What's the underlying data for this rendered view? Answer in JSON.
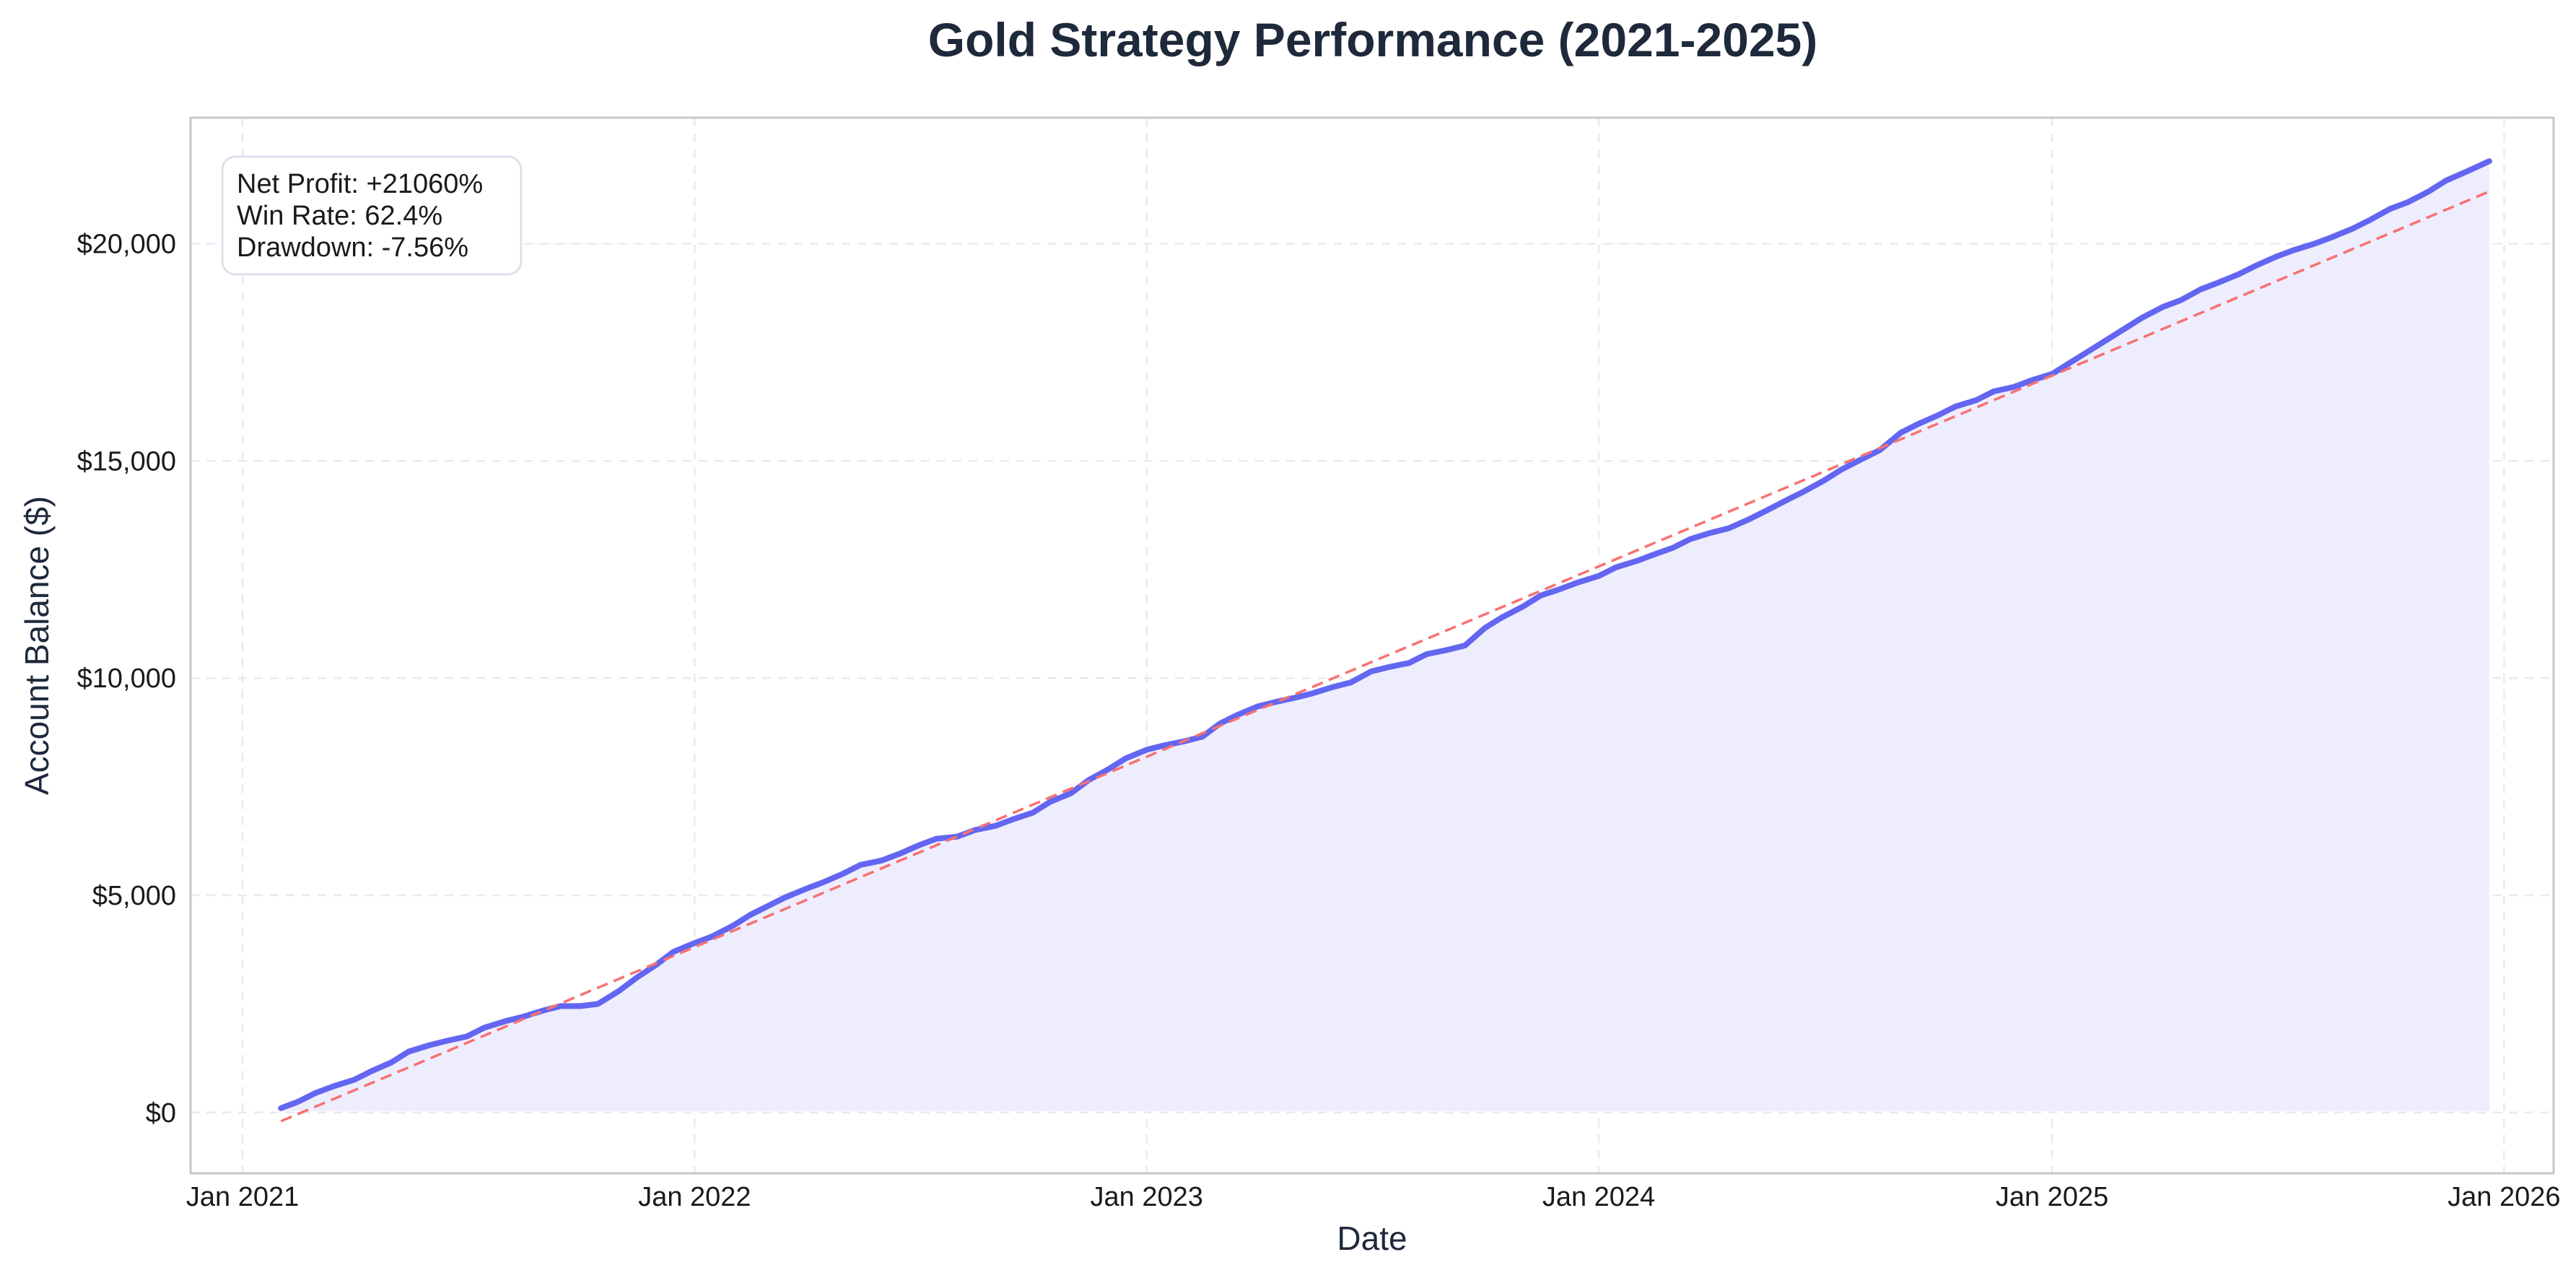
{
  "chart_data": {
    "type": "area",
    "title": "Gold Strategy Performance (2021-2025)",
    "xlabel": "Date",
    "ylabel": "Account Balance ($)",
    "x_ticks": [
      {
        "date": "2021-01-01",
        "label": "Jan 2021"
      },
      {
        "date": "2022-01-01",
        "label": "Jan 2022"
      },
      {
        "date": "2023-01-01",
        "label": "Jan 2023"
      },
      {
        "date": "2024-01-01",
        "label": "Jan 2024"
      },
      {
        "date": "2025-01-01",
        "label": "Jan 2025"
      },
      {
        "date": "2026-01-01",
        "label": "Jan 2026"
      }
    ],
    "y_ticks": [
      {
        "value": 0,
        "label": "$0"
      },
      {
        "value": 5000,
        "label": "$5,000"
      },
      {
        "value": 10000,
        "label": "$10,000"
      },
      {
        "value": 15000,
        "label": "$15,000"
      },
      {
        "value": 20000,
        "label": "$20,000"
      }
    ],
    "xlim": [
      "2020-11-20",
      "2026-02-10"
    ],
    "ylim": [
      -1400,
      22900
    ],
    "grid": true,
    "series": [
      {
        "kind": "equity",
        "color": "#6366f1",
        "fill_color": "#eeedfd",
        "points": [
          [
            "2021-02-01",
            100
          ],
          [
            "2021-02-15",
            250
          ],
          [
            "2021-03-01",
            450
          ],
          [
            "2021-03-15",
            600
          ],
          [
            "2021-04-01",
            750
          ],
          [
            "2021-04-15",
            950
          ],
          [
            "2021-05-01",
            1150
          ],
          [
            "2021-05-15",
            1400
          ],
          [
            "2021-06-01",
            1550
          ],
          [
            "2021-06-15",
            1650
          ],
          [
            "2021-07-01",
            1750
          ],
          [
            "2021-07-15",
            1950
          ],
          [
            "2021-08-01",
            2100
          ],
          [
            "2021-08-15",
            2200
          ],
          [
            "2021-09-01",
            2350
          ],
          [
            "2021-09-15",
            2450
          ],
          [
            "2021-10-01",
            2450
          ],
          [
            "2021-10-15",
            2500
          ],
          [
            "2021-11-01",
            2800
          ],
          [
            "2021-11-15",
            3100
          ],
          [
            "2021-12-01",
            3400
          ],
          [
            "2021-12-15",
            3700
          ],
          [
            "2022-01-01",
            3900
          ],
          [
            "2022-01-15",
            4050
          ],
          [
            "2022-02-01",
            4300
          ],
          [
            "2022-02-15",
            4550
          ],
          [
            "2022-03-01",
            4750
          ],
          [
            "2022-03-15",
            4950
          ],
          [
            "2022-04-01",
            5150
          ],
          [
            "2022-04-15",
            5300
          ],
          [
            "2022-05-01",
            5500
          ],
          [
            "2022-05-15",
            5700
          ],
          [
            "2022-06-01",
            5800
          ],
          [
            "2022-06-15",
            5950
          ],
          [
            "2022-07-01",
            6150
          ],
          [
            "2022-07-15",
            6300
          ],
          [
            "2022-08-01",
            6350
          ],
          [
            "2022-08-15",
            6500
          ],
          [
            "2022-09-01",
            6600
          ],
          [
            "2022-09-15",
            6750
          ],
          [
            "2022-10-01",
            6900
          ],
          [
            "2022-10-15",
            7150
          ],
          [
            "2022-11-01",
            7350
          ],
          [
            "2022-11-15",
            7650
          ],
          [
            "2022-12-01",
            7900
          ],
          [
            "2022-12-15",
            8150
          ],
          [
            "2023-01-01",
            8350
          ],
          [
            "2023-01-15",
            8450
          ],
          [
            "2023-02-01",
            8550
          ],
          [
            "2023-02-15",
            8650
          ],
          [
            "2023-03-01",
            8950
          ],
          [
            "2023-03-15",
            9150
          ],
          [
            "2023-04-01",
            9350
          ],
          [
            "2023-04-15",
            9450
          ],
          [
            "2023-05-01",
            9550
          ],
          [
            "2023-05-15",
            9650
          ],
          [
            "2023-06-01",
            9800
          ],
          [
            "2023-06-15",
            9900
          ],
          [
            "2023-07-01",
            10150
          ],
          [
            "2023-07-15",
            10250
          ],
          [
            "2023-08-01",
            10350
          ],
          [
            "2023-08-15",
            10550
          ],
          [
            "2023-09-01",
            10650
          ],
          [
            "2023-09-15",
            10750
          ],
          [
            "2023-10-01",
            11150
          ],
          [
            "2023-10-15",
            11400
          ],
          [
            "2023-11-01",
            11650
          ],
          [
            "2023-11-15",
            11900
          ],
          [
            "2023-12-01",
            12050
          ],
          [
            "2023-12-15",
            12200
          ],
          [
            "2024-01-01",
            12350
          ],
          [
            "2024-01-15",
            12550
          ],
          [
            "2024-02-01",
            12700
          ],
          [
            "2024-02-15",
            12850
          ],
          [
            "2024-03-01",
            13000
          ],
          [
            "2024-03-15",
            13200
          ],
          [
            "2024-04-01",
            13350
          ],
          [
            "2024-04-15",
            13450
          ],
          [
            "2024-05-01",
            13650
          ],
          [
            "2024-05-15",
            13850
          ],
          [
            "2024-06-01",
            14100
          ],
          [
            "2024-06-15",
            14300
          ],
          [
            "2024-07-01",
            14550
          ],
          [
            "2024-07-15",
            14800
          ],
          [
            "2024-08-01",
            15050
          ],
          [
            "2024-08-15",
            15250
          ],
          [
            "2024-09-01",
            15650
          ],
          [
            "2024-09-15",
            15850
          ],
          [
            "2024-10-01",
            16050
          ],
          [
            "2024-10-15",
            16250
          ],
          [
            "2024-11-01",
            16400
          ],
          [
            "2024-11-15",
            16600
          ],
          [
            "2024-12-01",
            16700
          ],
          [
            "2024-12-15",
            16850
          ],
          [
            "2025-01-01",
            17000
          ],
          [
            "2025-01-15",
            17250
          ],
          [
            "2025-02-01",
            17550
          ],
          [
            "2025-02-15",
            17800
          ],
          [
            "2025-03-01",
            18050
          ],
          [
            "2025-03-15",
            18300
          ],
          [
            "2025-04-01",
            18550
          ],
          [
            "2025-04-15",
            18700
          ],
          [
            "2025-05-01",
            18950
          ],
          [
            "2025-05-15",
            19100
          ],
          [
            "2025-06-01",
            19300
          ],
          [
            "2025-06-15",
            19500
          ],
          [
            "2025-07-01",
            19700
          ],
          [
            "2025-07-15",
            19850
          ],
          [
            "2025-08-01",
            20000
          ],
          [
            "2025-08-15",
            20150
          ],
          [
            "2025-09-01",
            20350
          ],
          [
            "2025-09-15",
            20550
          ],
          [
            "2025-10-01",
            20800
          ],
          [
            "2025-10-15",
            20950
          ],
          [
            "2025-11-01",
            21200
          ],
          [
            "2025-11-15",
            21450
          ],
          [
            "2025-12-01",
            21650
          ],
          [
            "2025-12-20",
            21900
          ]
        ]
      },
      {
        "kind": "trend",
        "color": "#f87171",
        "dashed": true,
        "points": [
          [
            "2021-02-01",
            -200
          ],
          [
            "2025-12-20",
            21200
          ]
        ]
      }
    ],
    "stats": [
      "Net Profit: +21060%",
      "Win Rate: 62.4%",
      "Drawdown: -7.56%"
    ],
    "stats_position": "top-left"
  }
}
